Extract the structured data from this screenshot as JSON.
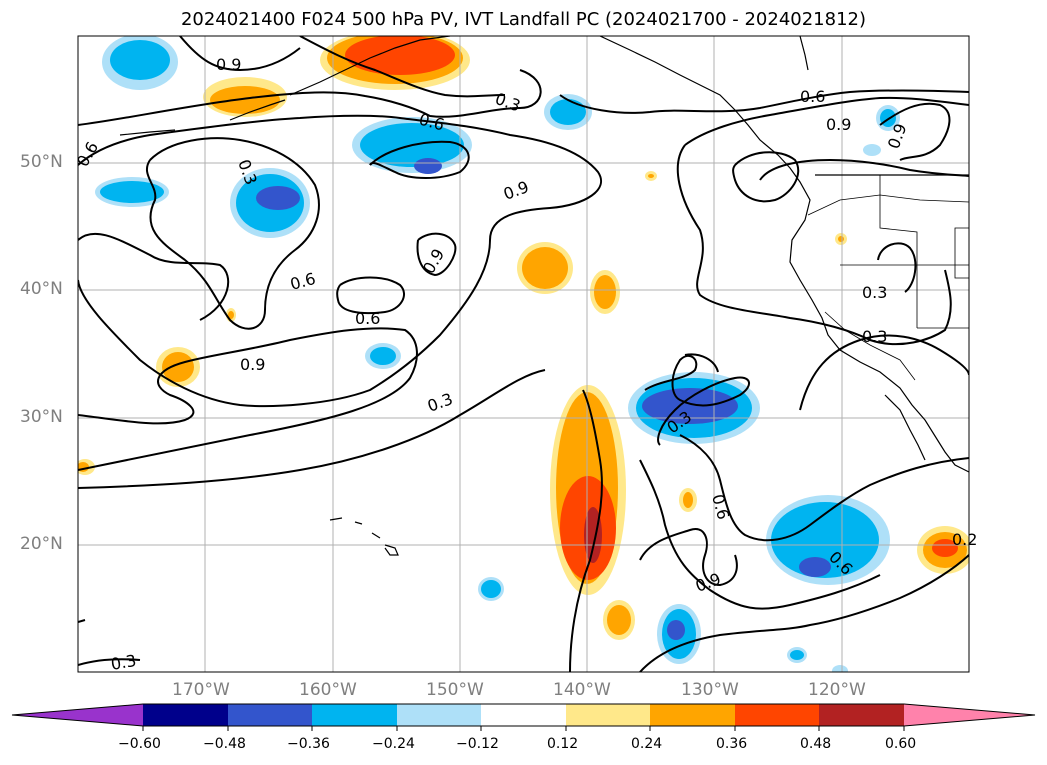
{
  "title": "2024021400 F024 500 hPa PV, IVT Landfall PC (2024021700 - 2024021812)",
  "lat_labels": [
    "50°N",
    "40°N",
    "30°N",
    "20°N"
  ],
  "lon_labels": [
    "170°W",
    "160°W",
    "150°W",
    "140°W",
    "130°W",
    "120°W"
  ],
  "contour_labels": [
    "0.9",
    "0.3",
    "0.6",
    "0.6",
    "0.9",
    "0.9",
    "0.6",
    "0.3",
    "0.9",
    "0.9",
    "0.6",
    "0.6",
    "0.9",
    "0.3",
    "0.3",
    "0.3",
    "0.3",
    "0.6",
    "0.9",
    "0.6",
    "0.3",
    "0.2"
  ],
  "colorbar": {
    "ticks": [
      "−0.60",
      "−0.48",
      "−0.36",
      "−0.24",
      "−0.12",
      "0.12",
      "0.24",
      "0.36",
      "0.48",
      "0.60"
    ],
    "colors": [
      "#9933cc",
      "#00008b",
      "#3355cc",
      "#00b4f0",
      "#aee0f8",
      "#ffffff",
      "#ffe88a",
      "#ffa500",
      "#ff4500",
      "#b22222",
      "#ff82ab"
    ]
  },
  "colors": {
    "neg_light": "#aee0f8",
    "neg_mid": "#00b4f0",
    "neg_dark": "#3355cc",
    "pos_light": "#ffe88a",
    "pos_mid": "#ffa500",
    "pos_dark": "#ff4500",
    "pos_darker": "#b22222"
  }
}
